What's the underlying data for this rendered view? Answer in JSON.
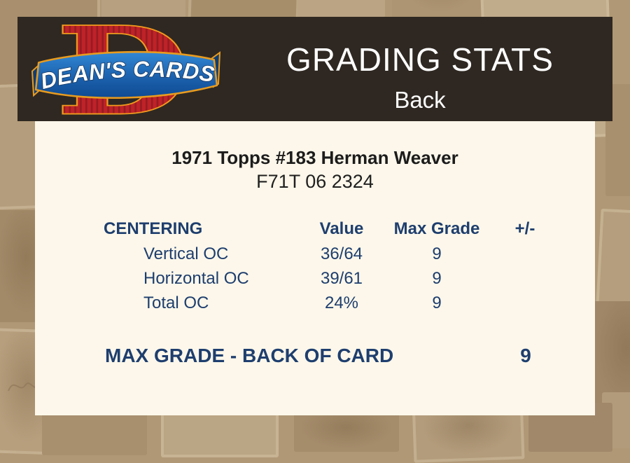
{
  "logo": {
    "letter": "D",
    "banner_text": "DEAN'S CARDS"
  },
  "header": {
    "title": "GRADING STATS",
    "subtitle": "Back"
  },
  "card": {
    "title": "1971 Topps #183 Herman Weaver",
    "serial": "F71T 06 2324",
    "table": {
      "headers": {
        "col1": "CENTERING",
        "col2": "Value",
        "col3": "Max Grade",
        "col4": "+/-"
      },
      "rows": [
        {
          "label": "Vertical OC",
          "value": "36/64",
          "max_grade": "9",
          "plus_minus": ""
        },
        {
          "label": "Horizontal OC",
          "value": "39/61",
          "max_grade": "9",
          "plus_minus": ""
        },
        {
          "label": "Total OC",
          "value": "24%",
          "max_grade": "9",
          "plus_minus": ""
        }
      ]
    },
    "summary": {
      "label": "MAX GRADE - BACK OF CARD",
      "grade": "9"
    }
  },
  "colors": {
    "header_bg": "#2f2822",
    "card_bg": "#fcf7ea",
    "table_navy": "#1e3e6e",
    "title_black": "#1c1c1c",
    "background_tan": "#b09876",
    "logo_red": "#bf2228",
    "logo_orange": "#f29b1d",
    "logo_blue": "#1c61ad"
  }
}
